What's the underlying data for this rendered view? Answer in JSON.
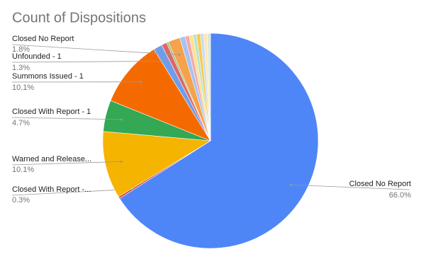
{
  "chart_data": {
    "type": "pie",
    "title": "Count of Dispositions",
    "categories": [
      "Closed No Report",
      "Closed With Report -...",
      "Warned and Release...",
      "Closed With Report - 1",
      "Summons Issued - 1",
      "Unfounded - 1",
      null,
      null,
      "Closed No Report",
      null,
      null,
      null,
      null,
      null,
      null,
      null,
      null
    ],
    "values": [
      66.0,
      0.3,
      10.1,
      4.7,
      10.1,
      1.3,
      0.8,
      0.3,
      1.8,
      0.8,
      0.6,
      0.6,
      0.5,
      0.6,
      0.5,
      0.5,
      0.5
    ],
    "value_labels": [
      "66.0%",
      "0.3%",
      "10.1%",
      "4.7%",
      "10.1%",
      "1.3%",
      null,
      null,
      "1.8%",
      null,
      null,
      null,
      null,
      null,
      null,
      null,
      null
    ],
    "colors": [
      "#4f86f7",
      "#db4437",
      "#f4b400",
      "#34a853",
      "#f56a00",
      "#6d9eeb",
      "#e06666",
      "#93c47d",
      "#f6a14c",
      "#a4c2f4",
      "#f4a7a7",
      "#fde293",
      "#b7e1cd",
      "#f7cb4d",
      "#c9daf8",
      "#fce8b2",
      "#d9ead3"
    ]
  }
}
